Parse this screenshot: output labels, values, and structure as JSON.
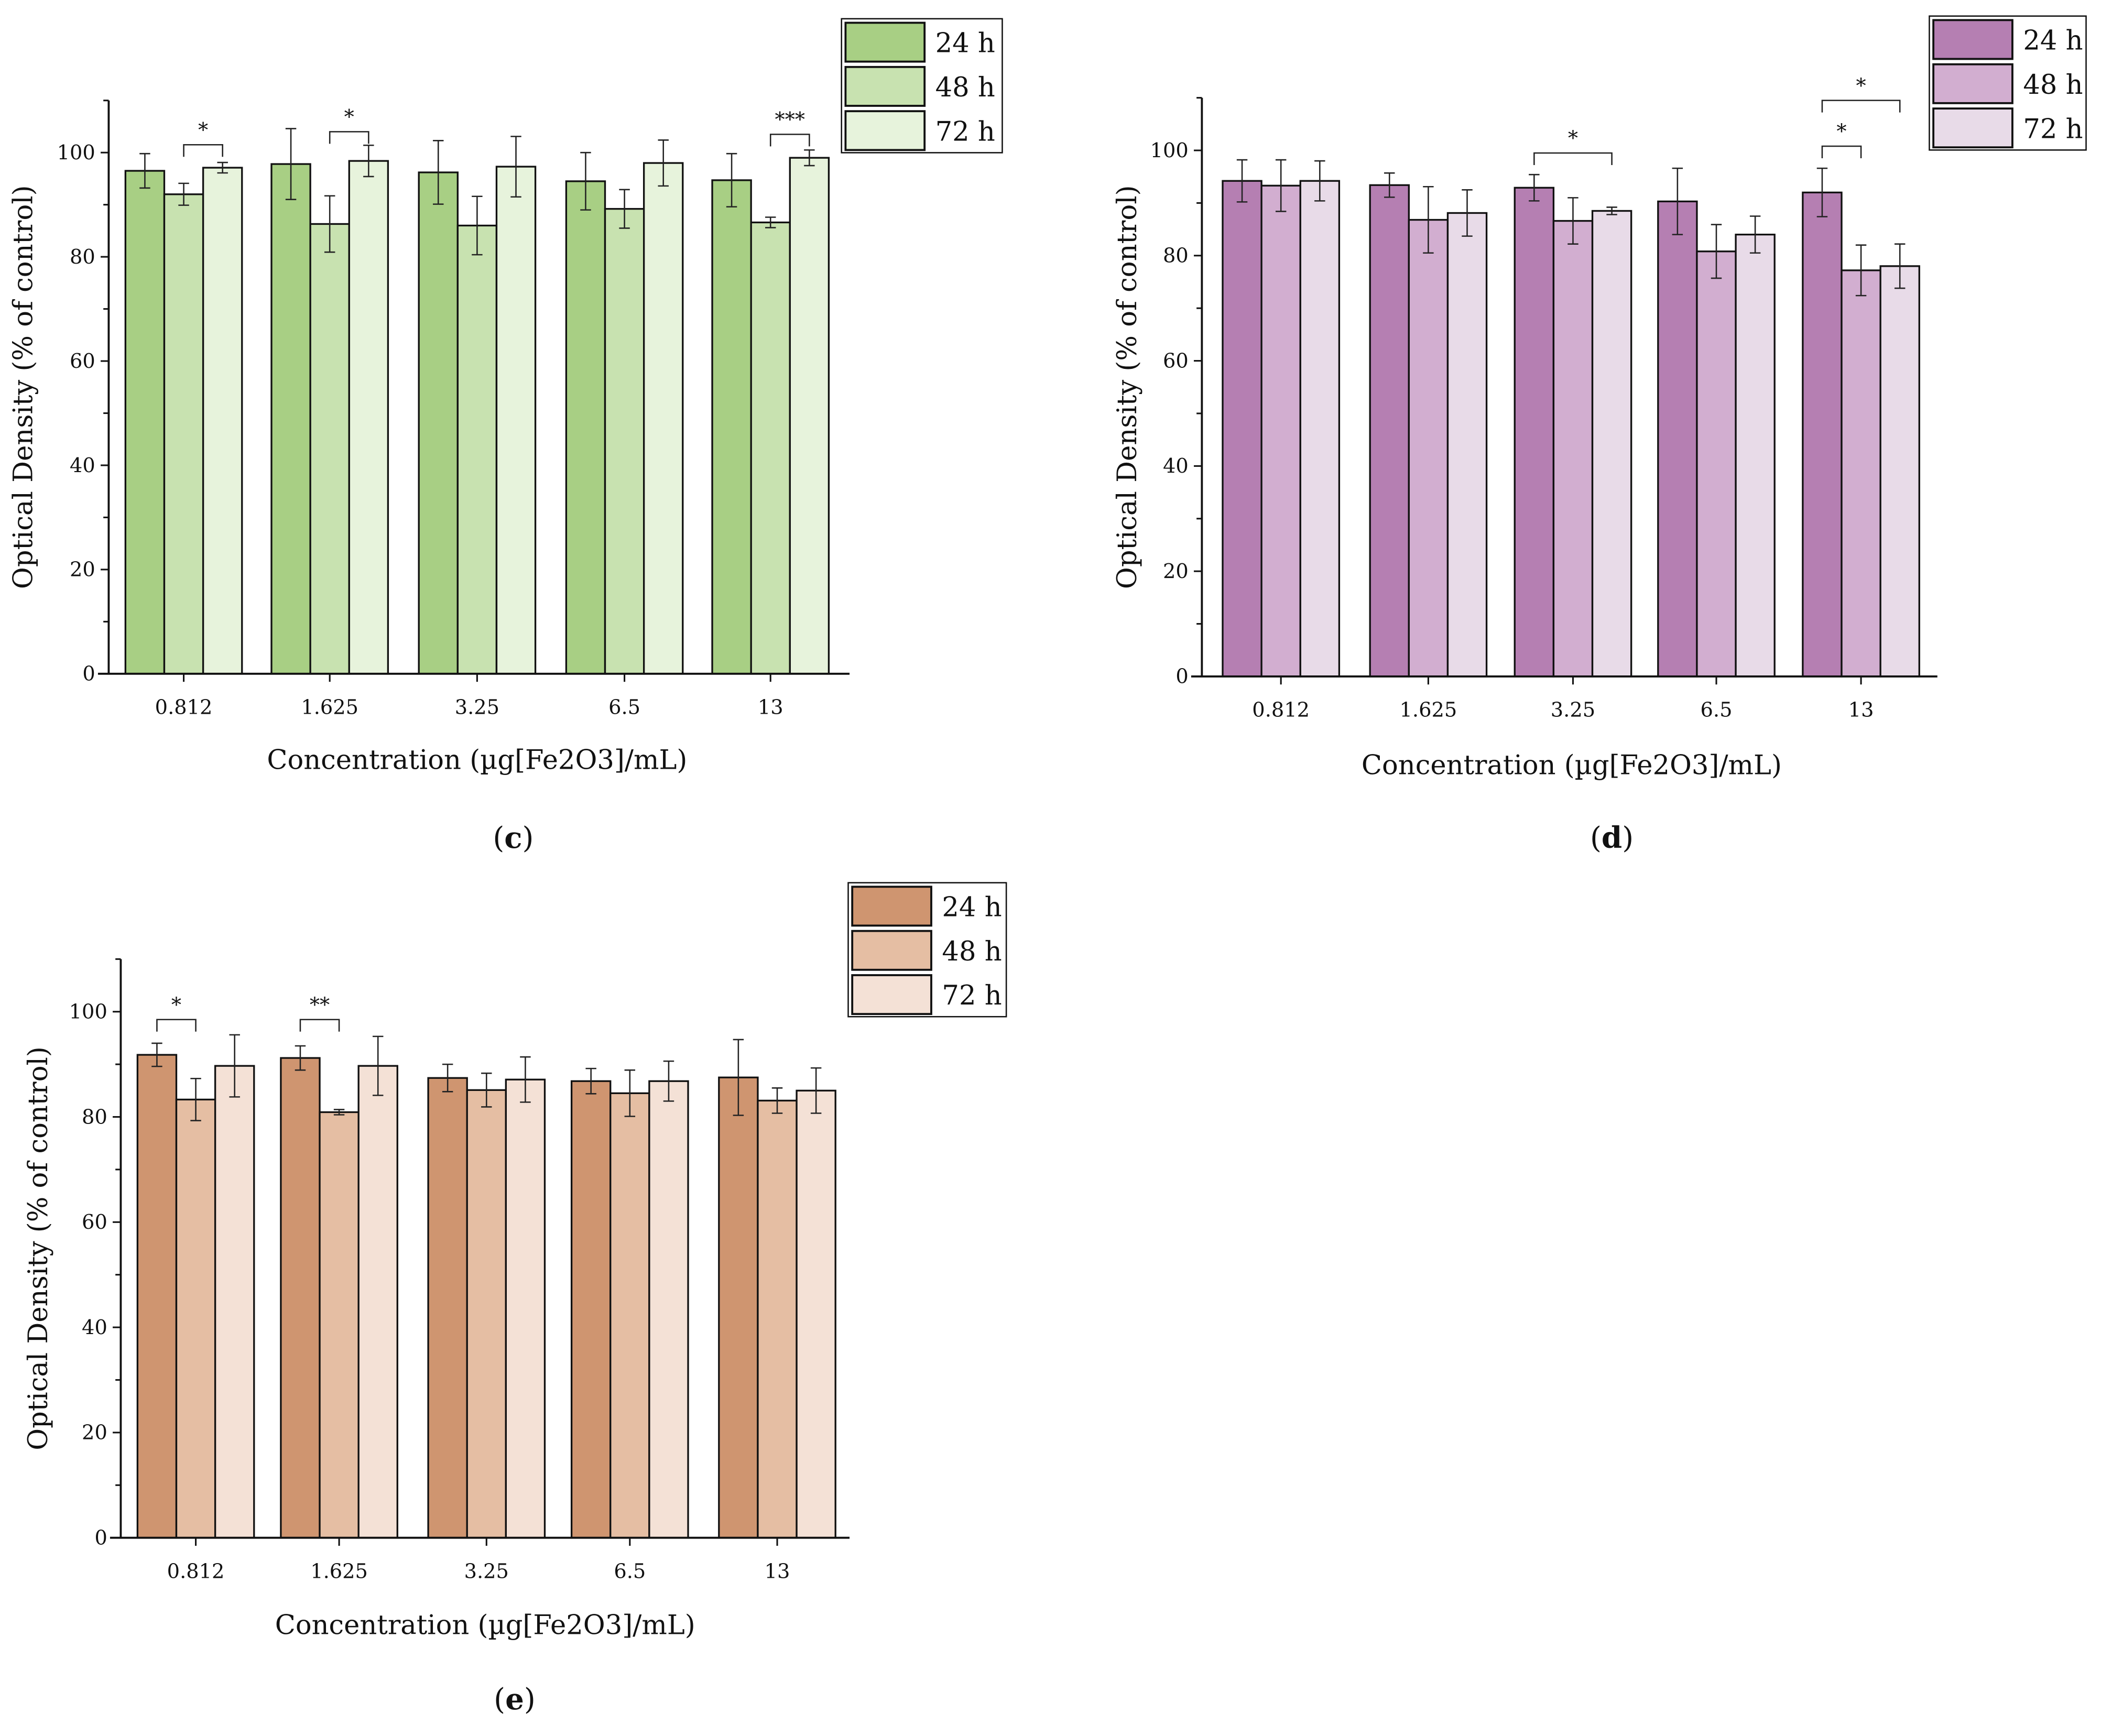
{
  "chart_data": [
    {
      "type": "bar",
      "panel_label": "c",
      "title": "",
      "xlabel": "Concentration (µg[Fe2O3]/mL)",
      "ylabel": "Optical Density (% of control)",
      "ylim": [
        0,
        110
      ],
      "yticks": [
        "0",
        "20",
        "40",
        "60",
        "80",
        "100"
      ],
      "categories": [
        "0.812",
        "1.625",
        "3.25",
        "6.5",
        "13"
      ],
      "legend_placement": "top-right",
      "series": [
        {
          "name": "24 h",
          "color": "#a8cf84",
          "values": [
            96.5,
            97.8,
            96.2,
            94.5,
            94.7
          ],
          "errors": [
            3.3,
            6.8,
            6.1,
            5.5,
            5.1
          ]
        },
        {
          "name": "48 h",
          "color": "#c8e2b0",
          "values": [
            92.0,
            86.3,
            86.0,
            89.2,
            86.6
          ],
          "errors": [
            2.1,
            5.4,
            5.6,
            3.7,
            1.0
          ]
        },
        {
          "name": "72 h",
          "color": "#e7f3dc",
          "values": [
            97.1,
            98.4,
            97.3,
            98.0,
            99.0
          ],
          "errors": [
            1.0,
            3.0,
            5.8,
            4.4,
            1.5
          ]
        }
      ],
      "significance": [
        {
          "group": 0,
          "from": 1,
          "to": 2,
          "level": 101.5,
          "label": "*"
        },
        {
          "group": 1,
          "from": 1,
          "to": 2,
          "level": 104,
          "label": "*"
        },
        {
          "group": 4,
          "from": 1,
          "to": 2,
          "level": 103.5,
          "label": "***"
        }
      ]
    },
    {
      "type": "bar",
      "panel_label": "d",
      "title": "",
      "xlabel": "Concentration (µg[Fe2O3]/mL)",
      "ylabel": "Optical Density (% of control)",
      "ylim": [
        0,
        110
      ],
      "yticks": [
        "0",
        "20",
        "40",
        "60",
        "80",
        "100"
      ],
      "categories": [
        "0.812",
        "1.625",
        "3.25",
        "6.5",
        "13"
      ],
      "legend_placement": "top-right",
      "series": [
        {
          "name": "24 h",
          "color": "#b57fb2",
          "values": [
            94.2,
            93.4,
            92.9,
            90.3,
            92.0
          ],
          "errors": [
            4.0,
            2.3,
            2.5,
            6.3,
            4.6
          ]
        },
        {
          "name": "48 h",
          "color": "#d2aed0",
          "values": [
            93.3,
            86.8,
            86.6,
            80.8,
            77.2
          ],
          "errors": [
            4.9,
            6.3,
            4.4,
            5.1,
            4.8
          ]
        },
        {
          "name": "72 h",
          "color": "#e8dbe8",
          "values": [
            94.2,
            88.1,
            88.5,
            84.0,
            78.0
          ],
          "errors": [
            3.8,
            4.4,
            0.7,
            3.5,
            4.2
          ]
        }
      ],
      "significance": [
        {
          "group": 2,
          "from": 0,
          "to": 2,
          "level": 99.5,
          "label": "*"
        },
        {
          "group": 4,
          "from": 0,
          "to": 1,
          "level": 100.8,
          "label": "*"
        },
        {
          "group": 4,
          "from": 0,
          "to": 2,
          "level": 109.5,
          "label": "*"
        }
      ]
    },
    {
      "type": "bar",
      "panel_label": "e",
      "title": "",
      "xlabel": "Concentration (µg[Fe2O3]/mL)",
      "ylabel": "Optical Density (% of control)",
      "ylim": [
        0,
        110
      ],
      "yticks": [
        "0",
        "20",
        "40",
        "60",
        "80",
        "100"
      ],
      "categories": [
        "0.812",
        "1.625",
        "3.25",
        "6.5",
        "13"
      ],
      "legend_placement": "top-right",
      "series": [
        {
          "name": "24 h",
          "color": "#cf9570",
          "values": [
            91.8,
            91.2,
            87.4,
            86.8,
            87.5
          ],
          "errors": [
            2.2,
            2.3,
            2.6,
            2.4,
            7.2
          ]
        },
        {
          "name": "48 h",
          "color": "#e5bea3",
          "values": [
            83.3,
            80.9,
            85.1,
            84.5,
            83.1
          ],
          "errors": [
            4.0,
            0.5,
            3.2,
            4.4,
            2.4
          ]
        },
        {
          "name": "72 h",
          "color": "#f4e1d6",
          "values": [
            89.7,
            89.7,
            87.1,
            86.8,
            85.0
          ],
          "errors": [
            5.9,
            5.6,
            4.3,
            3.8,
            4.3
          ]
        }
      ],
      "significance": [
        {
          "group": 0,
          "from": 0,
          "to": 1,
          "level": 98.5,
          "label": "*"
        },
        {
          "group": 1,
          "from": 0,
          "to": 1,
          "level": 98.5,
          "label": "**"
        }
      ]
    }
  ]
}
